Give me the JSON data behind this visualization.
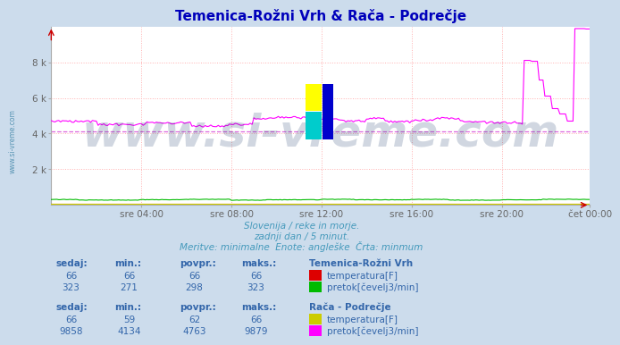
{
  "title": "Temenica-Rožni Vrh & Rača - Podrečje",
  "subtitle_lines": [
    "Slovenija / reke in morje.",
    "zadnji dan / 5 minut.",
    "Meritve: minimalne  Enote: angleške  Črta: minmum"
  ],
  "bg_color": "#ccdcec",
  "plot_bg_color": "#ffffff",
  "grid_color": "#ffb0b0",
  "title_color": "#0000bb",
  "subtitle_color": "#4499bb",
  "label_color": "#3366aa",
  "n_points": 288,
  "x_ticks_pos": [
    48,
    96,
    144,
    192,
    240,
    287
  ],
  "x_ticks_labels": [
    "sre 04:00",
    "sre 08:00",
    "sre 12:00",
    "sre 16:00",
    "sre 20:00",
    "čet 00:00"
  ],
  "ylim": [
    0,
    10000
  ],
  "yticks": [
    2000,
    4000,
    6000,
    8000
  ],
  "ytick_labels": [
    "2 k",
    "4 k",
    "6 k",
    "8 k"
  ],
  "watermark_text": "www.si-vreme.com",
  "watermark_color": "#1a3a6a",
  "watermark_alpha": 0.2,
  "watermark_fontsize": 36,
  "dashed_line_value": 4134,
  "dashed_line_color": "#dd66dd",
  "arrow_color": "#cc0000",
  "side_label": "www.si-vreme.com",
  "side_label_color": "#4488aa",
  "station1": {
    "name": "Temenica-Rožni Vrh",
    "temp_color": "#dd0000",
    "flow_color": "#00bb00",
    "temp_sedaj": "66",
    "temp_min": "66",
    "temp_povpr": "66",
    "temp_maks": "66",
    "flow_sedaj": "323",
    "flow_min": "271",
    "flow_povpr": "298",
    "flow_maks": "323"
  },
  "station2": {
    "name": "Rača - Podrečje",
    "temp_color": "#cccc00",
    "flow_color": "#ff00ff",
    "temp_sedaj": "66",
    "temp_min": "59",
    "temp_povpr": "62",
    "temp_maks": "66",
    "flow_sedaj": "9858",
    "flow_min": "4134",
    "flow_povpr": "4763",
    "flow_maks": "9879"
  }
}
